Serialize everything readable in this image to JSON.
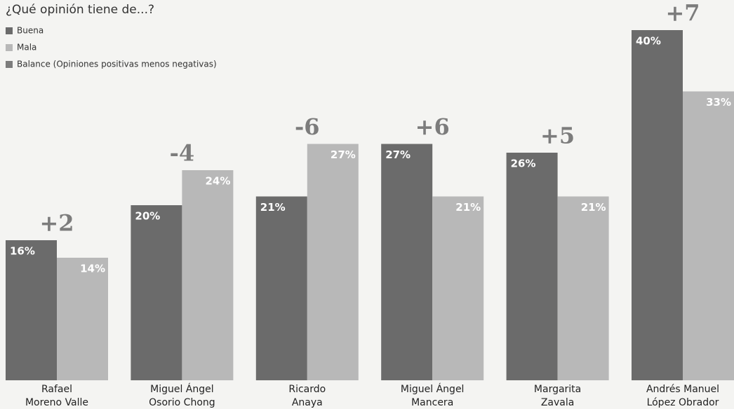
{
  "chart_data": {
    "type": "bar",
    "title": "¿Qué opinión tiene de...?",
    "categories": [
      [
        "Rafael",
        "Moreno Valle"
      ],
      [
        "Miguel Ángel",
        "Osorio Chong"
      ],
      [
        "Ricardo",
        "Anaya"
      ],
      [
        "Miguel Ángel",
        "Mancera"
      ],
      [
        "Margarita",
        "Zavala"
      ],
      [
        "Andrés Manuel",
        "López Obrador"
      ]
    ],
    "series": [
      {
        "name": "Buena",
        "color": "#6b6b6b",
        "values": [
          16,
          20,
          21,
          27,
          26,
          40
        ],
        "value_labels": [
          "16%",
          "20%",
          "21%",
          "27%",
          "26%",
          "40%"
        ]
      },
      {
        "name": "Mala",
        "color": "#b8b8b8",
        "values": [
          14,
          24,
          27,
          21,
          21,
          33
        ],
        "value_labels": [
          "14%",
          "24%",
          "27%",
          "21%",
          "21%",
          "33%"
        ]
      },
      {
        "name": "Balance (Opiniones positivas menos negativas)",
        "color": "#7c7c7c",
        "values": [
          2,
          -4,
          -6,
          6,
          5,
          7
        ],
        "value_labels": [
          "+2",
          "-4",
          "-6",
          "+6",
          "+5",
          "+7"
        ]
      }
    ]
  }
}
